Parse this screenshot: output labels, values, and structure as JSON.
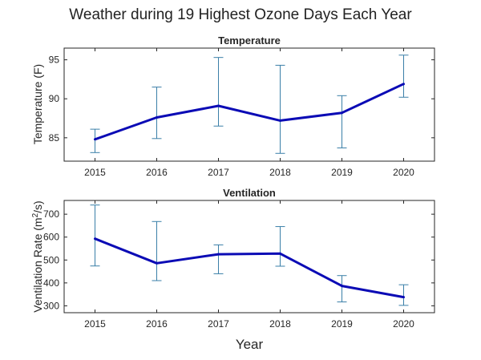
{
  "figure": {
    "title": "Weather during 19 Highest Ozone Days Each Year"
  },
  "colors": {
    "line": "#0b0bb5",
    "errorbar": "#3a7fa8",
    "axis": "#262626",
    "background": "#ffffff"
  },
  "chart_data": [
    {
      "type": "line",
      "title": "Temperature",
      "xlabel": "",
      "ylabel": "Temperature (F)",
      "x": [
        2015,
        2016,
        2017,
        2018,
        2019,
        2020
      ],
      "xticks": [
        "2015",
        "2016",
        "2017",
        "2018",
        "2019",
        "2020"
      ],
      "xlim": [
        2014.5,
        2020.5
      ],
      "ylim": [
        82,
        96.5
      ],
      "yticks": [
        85,
        90,
        95
      ],
      "grid": false,
      "series": [
        {
          "values": [
            84.8,
            87.6,
            89.1,
            87.2,
            88.2,
            91.9
          ],
          "error_low": [
            83.1,
            84.9,
            86.5,
            83.0,
            83.7,
            90.2
          ],
          "error_high": [
            86.1,
            91.5,
            95.3,
            94.3,
            90.4,
            95.6
          ]
        }
      ]
    },
    {
      "type": "line",
      "title": "Ventilation",
      "xlabel": "Year",
      "ylabel_main": "Ventilation Rate (m",
      "ylabel_sup": "2",
      "ylabel_end": "/s)",
      "x": [
        2015,
        2016,
        2017,
        2018,
        2019,
        2020
      ],
      "xticks": [
        "2015",
        "2016",
        "2017",
        "2018",
        "2019",
        "2020"
      ],
      "xlim": [
        2014.5,
        2020.5
      ],
      "ylim": [
        270,
        760
      ],
      "yticks": [
        300,
        400,
        500,
        600,
        700
      ],
      "grid": false,
      "series": [
        {
          "values": [
            593,
            486,
            525,
            528,
            387,
            338
          ],
          "error_low": [
            474,
            410,
            440,
            473,
            317,
            302
          ],
          "error_high": [
            740,
            668,
            566,
            646,
            432,
            392
          ]
        }
      ]
    }
  ]
}
